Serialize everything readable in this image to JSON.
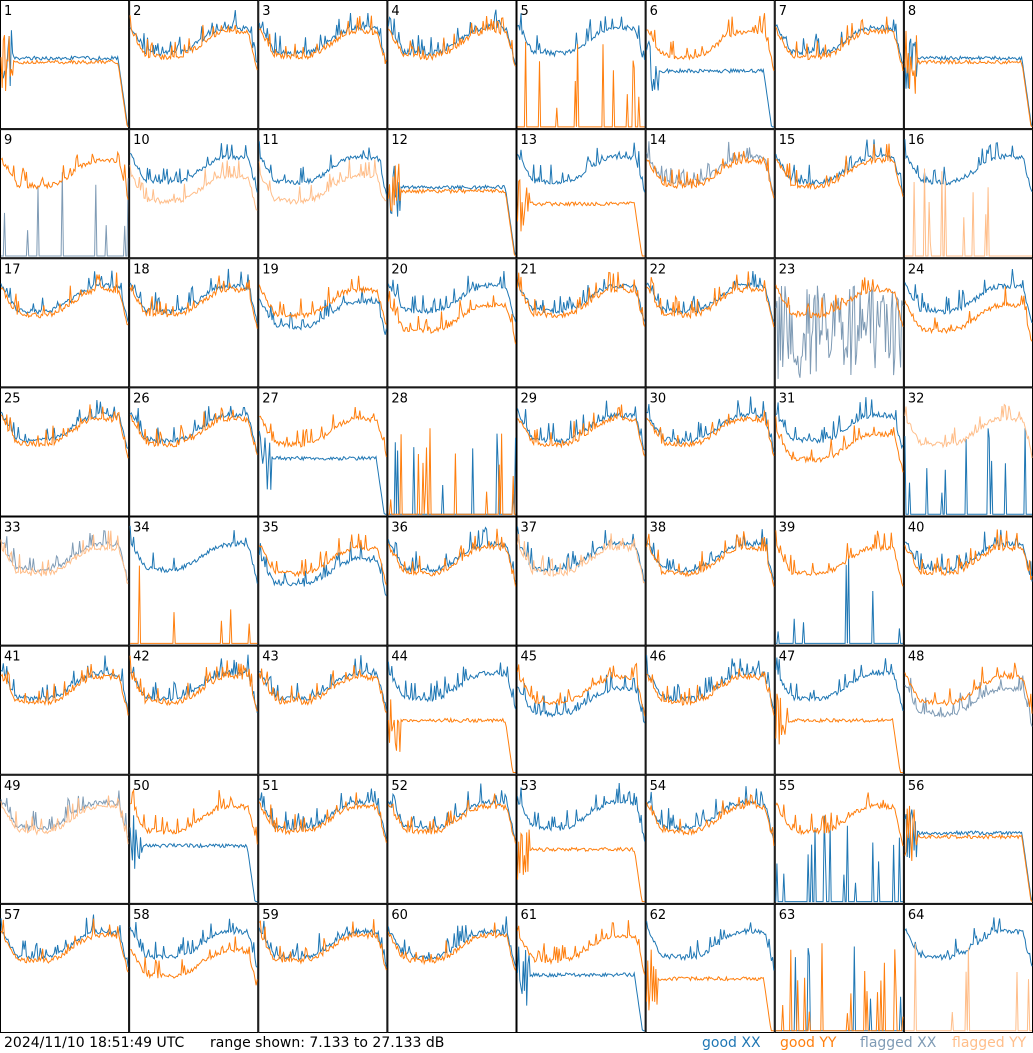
{
  "footer": {
    "timestamp": "2024/11/10 18:51:49 UTC",
    "range_text": "range shown: 7.133 to 27.133 dB"
  },
  "legend": [
    {
      "label": "good XX",
      "color": "#1f77b4"
    },
    {
      "label": "good YY",
      "color": "#ff7f0e"
    },
    {
      "label": "flagged XX",
      "color": "#7f9bb5"
    },
    {
      "label": "flagged YY",
      "color": "#ffbe8a"
    }
  ],
  "chart_data": {
    "type": "line",
    "title": "",
    "ylim": [
      7.133,
      27.133
    ],
    "yunit": "dB",
    "grid_layout": "8x8 small multiples",
    "panels": [
      {
        "id": "1",
        "xx": "good",
        "yy": "good",
        "shape": "bandpass"
      },
      {
        "id": "2",
        "xx": "good",
        "yy": "good",
        "shape": "normal"
      },
      {
        "id": "3",
        "xx": "good",
        "yy": "good",
        "shape": "normal"
      },
      {
        "id": "4",
        "xx": "good",
        "yy": "good",
        "shape": "normal"
      },
      {
        "id": "5",
        "xx": "good",
        "yy": "good",
        "shape": "yy-dead"
      },
      {
        "id": "6",
        "xx": "good",
        "yy": "good",
        "shape": "xx-low-bandpass"
      },
      {
        "id": "7",
        "xx": "good",
        "yy": "good",
        "shape": "normal"
      },
      {
        "id": "8",
        "xx": "good",
        "yy": "good",
        "shape": "bandpass"
      },
      {
        "id": "9",
        "xx": "flagged",
        "yy": "good",
        "shape": "xx-dead"
      },
      {
        "id": "10",
        "xx": "good",
        "yy": "flagged",
        "shape": "yy-low"
      },
      {
        "id": "11",
        "xx": "good",
        "yy": "flagged",
        "shape": "yy-low"
      },
      {
        "id": "12",
        "xx": "good",
        "yy": "good",
        "shape": "bandpass"
      },
      {
        "id": "13",
        "xx": "good",
        "yy": "good",
        "shape": "yy-low-bandpass"
      },
      {
        "id": "14",
        "xx": "flagged",
        "yy": "good",
        "shape": "normal"
      },
      {
        "id": "15",
        "xx": "good",
        "yy": "good",
        "shape": "normal"
      },
      {
        "id": "16",
        "xx": "good",
        "yy": "flagged",
        "shape": "yy-dead"
      },
      {
        "id": "17",
        "xx": "good",
        "yy": "good",
        "shape": "normal"
      },
      {
        "id": "18",
        "xx": "good",
        "yy": "good",
        "shape": "normal"
      },
      {
        "id": "19",
        "xx": "good",
        "yy": "good",
        "shape": "xx-low"
      },
      {
        "id": "20",
        "xx": "good",
        "yy": "good",
        "shape": "yy-low"
      },
      {
        "id": "21",
        "xx": "good",
        "yy": "good",
        "shape": "normal"
      },
      {
        "id": "22",
        "xx": "good",
        "yy": "good",
        "shape": "normal"
      },
      {
        "id": "23",
        "xx": "flagged",
        "yy": "good",
        "shape": "xx-noisy"
      },
      {
        "id": "24",
        "xx": "good",
        "yy": "good",
        "shape": "yy-low"
      },
      {
        "id": "25",
        "xx": "good",
        "yy": "good",
        "shape": "normal"
      },
      {
        "id": "26",
        "xx": "good",
        "yy": "good",
        "shape": "normal"
      },
      {
        "id": "27",
        "xx": "good",
        "yy": "good",
        "shape": "xx-low-bandpass"
      },
      {
        "id": "28",
        "xx": "good",
        "yy": "good",
        "shape": "both-dead"
      },
      {
        "id": "29",
        "xx": "good",
        "yy": "good",
        "shape": "normal"
      },
      {
        "id": "30",
        "xx": "good",
        "yy": "good",
        "shape": "normal"
      },
      {
        "id": "31",
        "xx": "good",
        "yy": "good",
        "shape": "yy-low"
      },
      {
        "id": "32",
        "xx": "good",
        "yy": "flagged",
        "shape": "xx-dead"
      },
      {
        "id": "33",
        "xx": "flagged",
        "yy": "flagged",
        "shape": "normal"
      },
      {
        "id": "34",
        "xx": "good",
        "yy": "good",
        "shape": "yy-dead"
      },
      {
        "id": "35",
        "xx": "good",
        "yy": "good",
        "shape": "xx-low"
      },
      {
        "id": "36",
        "xx": "good",
        "yy": "good",
        "shape": "normal"
      },
      {
        "id": "37",
        "xx": "good",
        "yy": "flagged",
        "shape": "normal"
      },
      {
        "id": "38",
        "xx": "good",
        "yy": "good",
        "shape": "normal"
      },
      {
        "id": "39",
        "xx": "good",
        "yy": "good",
        "shape": "xx-dead"
      },
      {
        "id": "40",
        "xx": "good",
        "yy": "good",
        "shape": "normal"
      },
      {
        "id": "41",
        "xx": "good",
        "yy": "good",
        "shape": "normal"
      },
      {
        "id": "42",
        "xx": "good",
        "yy": "good",
        "shape": "normal"
      },
      {
        "id": "43",
        "xx": "good",
        "yy": "good",
        "shape": "normal"
      },
      {
        "id": "44",
        "xx": "good",
        "yy": "good",
        "shape": "yy-low-bandpass"
      },
      {
        "id": "45",
        "xx": "good",
        "yy": "good",
        "shape": "xx-low"
      },
      {
        "id": "46",
        "xx": "good",
        "yy": "good",
        "shape": "normal"
      },
      {
        "id": "47",
        "xx": "good",
        "yy": "good",
        "shape": "yy-low-bandpass"
      },
      {
        "id": "48",
        "xx": "flagged",
        "yy": "good",
        "shape": "xx-low"
      },
      {
        "id": "49",
        "xx": "flagged",
        "yy": "flagged",
        "shape": "normal"
      },
      {
        "id": "50",
        "xx": "good",
        "yy": "good",
        "shape": "xx-low-bandpass"
      },
      {
        "id": "51",
        "xx": "good",
        "yy": "good",
        "shape": "normal"
      },
      {
        "id": "52",
        "xx": "good",
        "yy": "good",
        "shape": "normal"
      },
      {
        "id": "53",
        "xx": "good",
        "yy": "good",
        "shape": "yy-low-bandpass"
      },
      {
        "id": "54",
        "xx": "good",
        "yy": "good",
        "shape": "normal"
      },
      {
        "id": "55",
        "xx": "good",
        "yy": "good",
        "shape": "xx-dead"
      },
      {
        "id": "56",
        "xx": "good",
        "yy": "good",
        "shape": "bandpass"
      },
      {
        "id": "57",
        "xx": "good",
        "yy": "good",
        "shape": "normal"
      },
      {
        "id": "58",
        "xx": "good",
        "yy": "good",
        "shape": "yy-low"
      },
      {
        "id": "59",
        "xx": "good",
        "yy": "good",
        "shape": "normal"
      },
      {
        "id": "60",
        "xx": "good",
        "yy": "good",
        "shape": "normal"
      },
      {
        "id": "61",
        "xx": "good",
        "yy": "good",
        "shape": "xx-low-bandpass"
      },
      {
        "id": "62",
        "xx": "good",
        "yy": "good",
        "shape": "yy-low-bandpass"
      },
      {
        "id": "63",
        "xx": "good",
        "yy": "good",
        "shape": "both-dead"
      },
      {
        "id": "64",
        "xx": "good",
        "yy": "flagged",
        "shape": "yy-dead"
      }
    ]
  }
}
